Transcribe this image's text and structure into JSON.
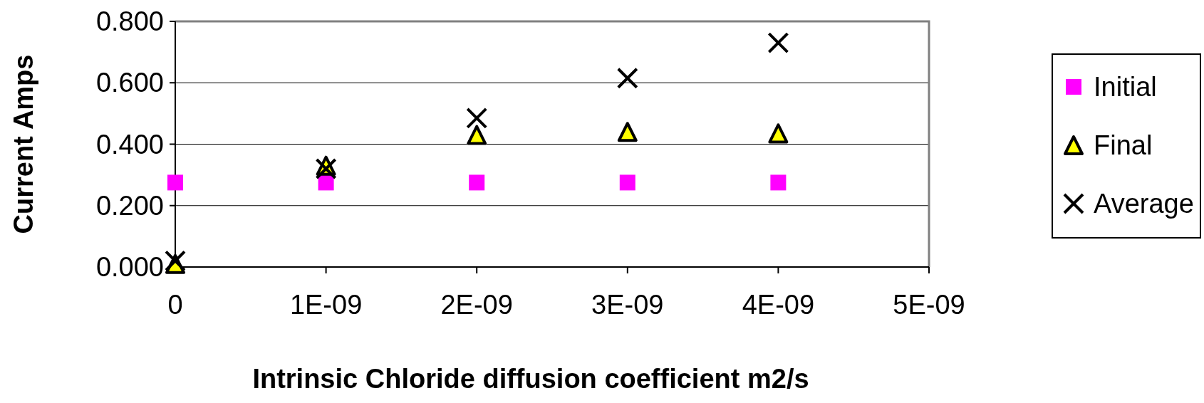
{
  "chart_data": {
    "type": "scatter",
    "xlabel": "Intrinsic Chloride diffusion coefficient m2/s",
    "ylabel": "Current Amps",
    "x": [
      0,
      1e-09,
      2e-09,
      3e-09,
      4e-09
    ],
    "xlim": [
      0,
      5e-09
    ],
    "xticks": [
      0,
      {
        "value": 1e-09,
        "label": "1E-09"
      },
      {
        "value": 2e-09,
        "label": "2E-09"
      },
      {
        "value": 3e-09,
        "label": "3E-09"
      },
      {
        "value": 4e-09,
        "label": "4E-09"
      },
      {
        "value": 5e-09,
        "label": "5E-09"
      }
    ],
    "ylim": [
      0,
      0.8
    ],
    "yticks": [
      {
        "value": 0,
        "label": "0.000"
      },
      {
        "value": 0.2,
        "label": "0.200"
      },
      {
        "value": 0.4,
        "label": "0.400"
      },
      {
        "value": 0.6,
        "label": "0.600"
      },
      {
        "value": 0.8,
        "label": "0.800"
      }
    ],
    "grid": "y",
    "legend": "right",
    "series": [
      {
        "name": "Initial",
        "color": "#ff00ff",
        "marker": "square",
        "values": [
          0.275,
          0.275,
          0.275,
          0.275,
          0.275
        ]
      },
      {
        "name": "Final",
        "color": "#ffff00",
        "marker": "triangle",
        "values": [
          0.01,
          0.33,
          0.43,
          0.44,
          0.435
        ]
      },
      {
        "name": "Average",
        "color": "#000000",
        "marker": "cross",
        "values": [
          0.02,
          0.32,
          0.485,
          0.615,
          0.73
        ]
      }
    ]
  }
}
